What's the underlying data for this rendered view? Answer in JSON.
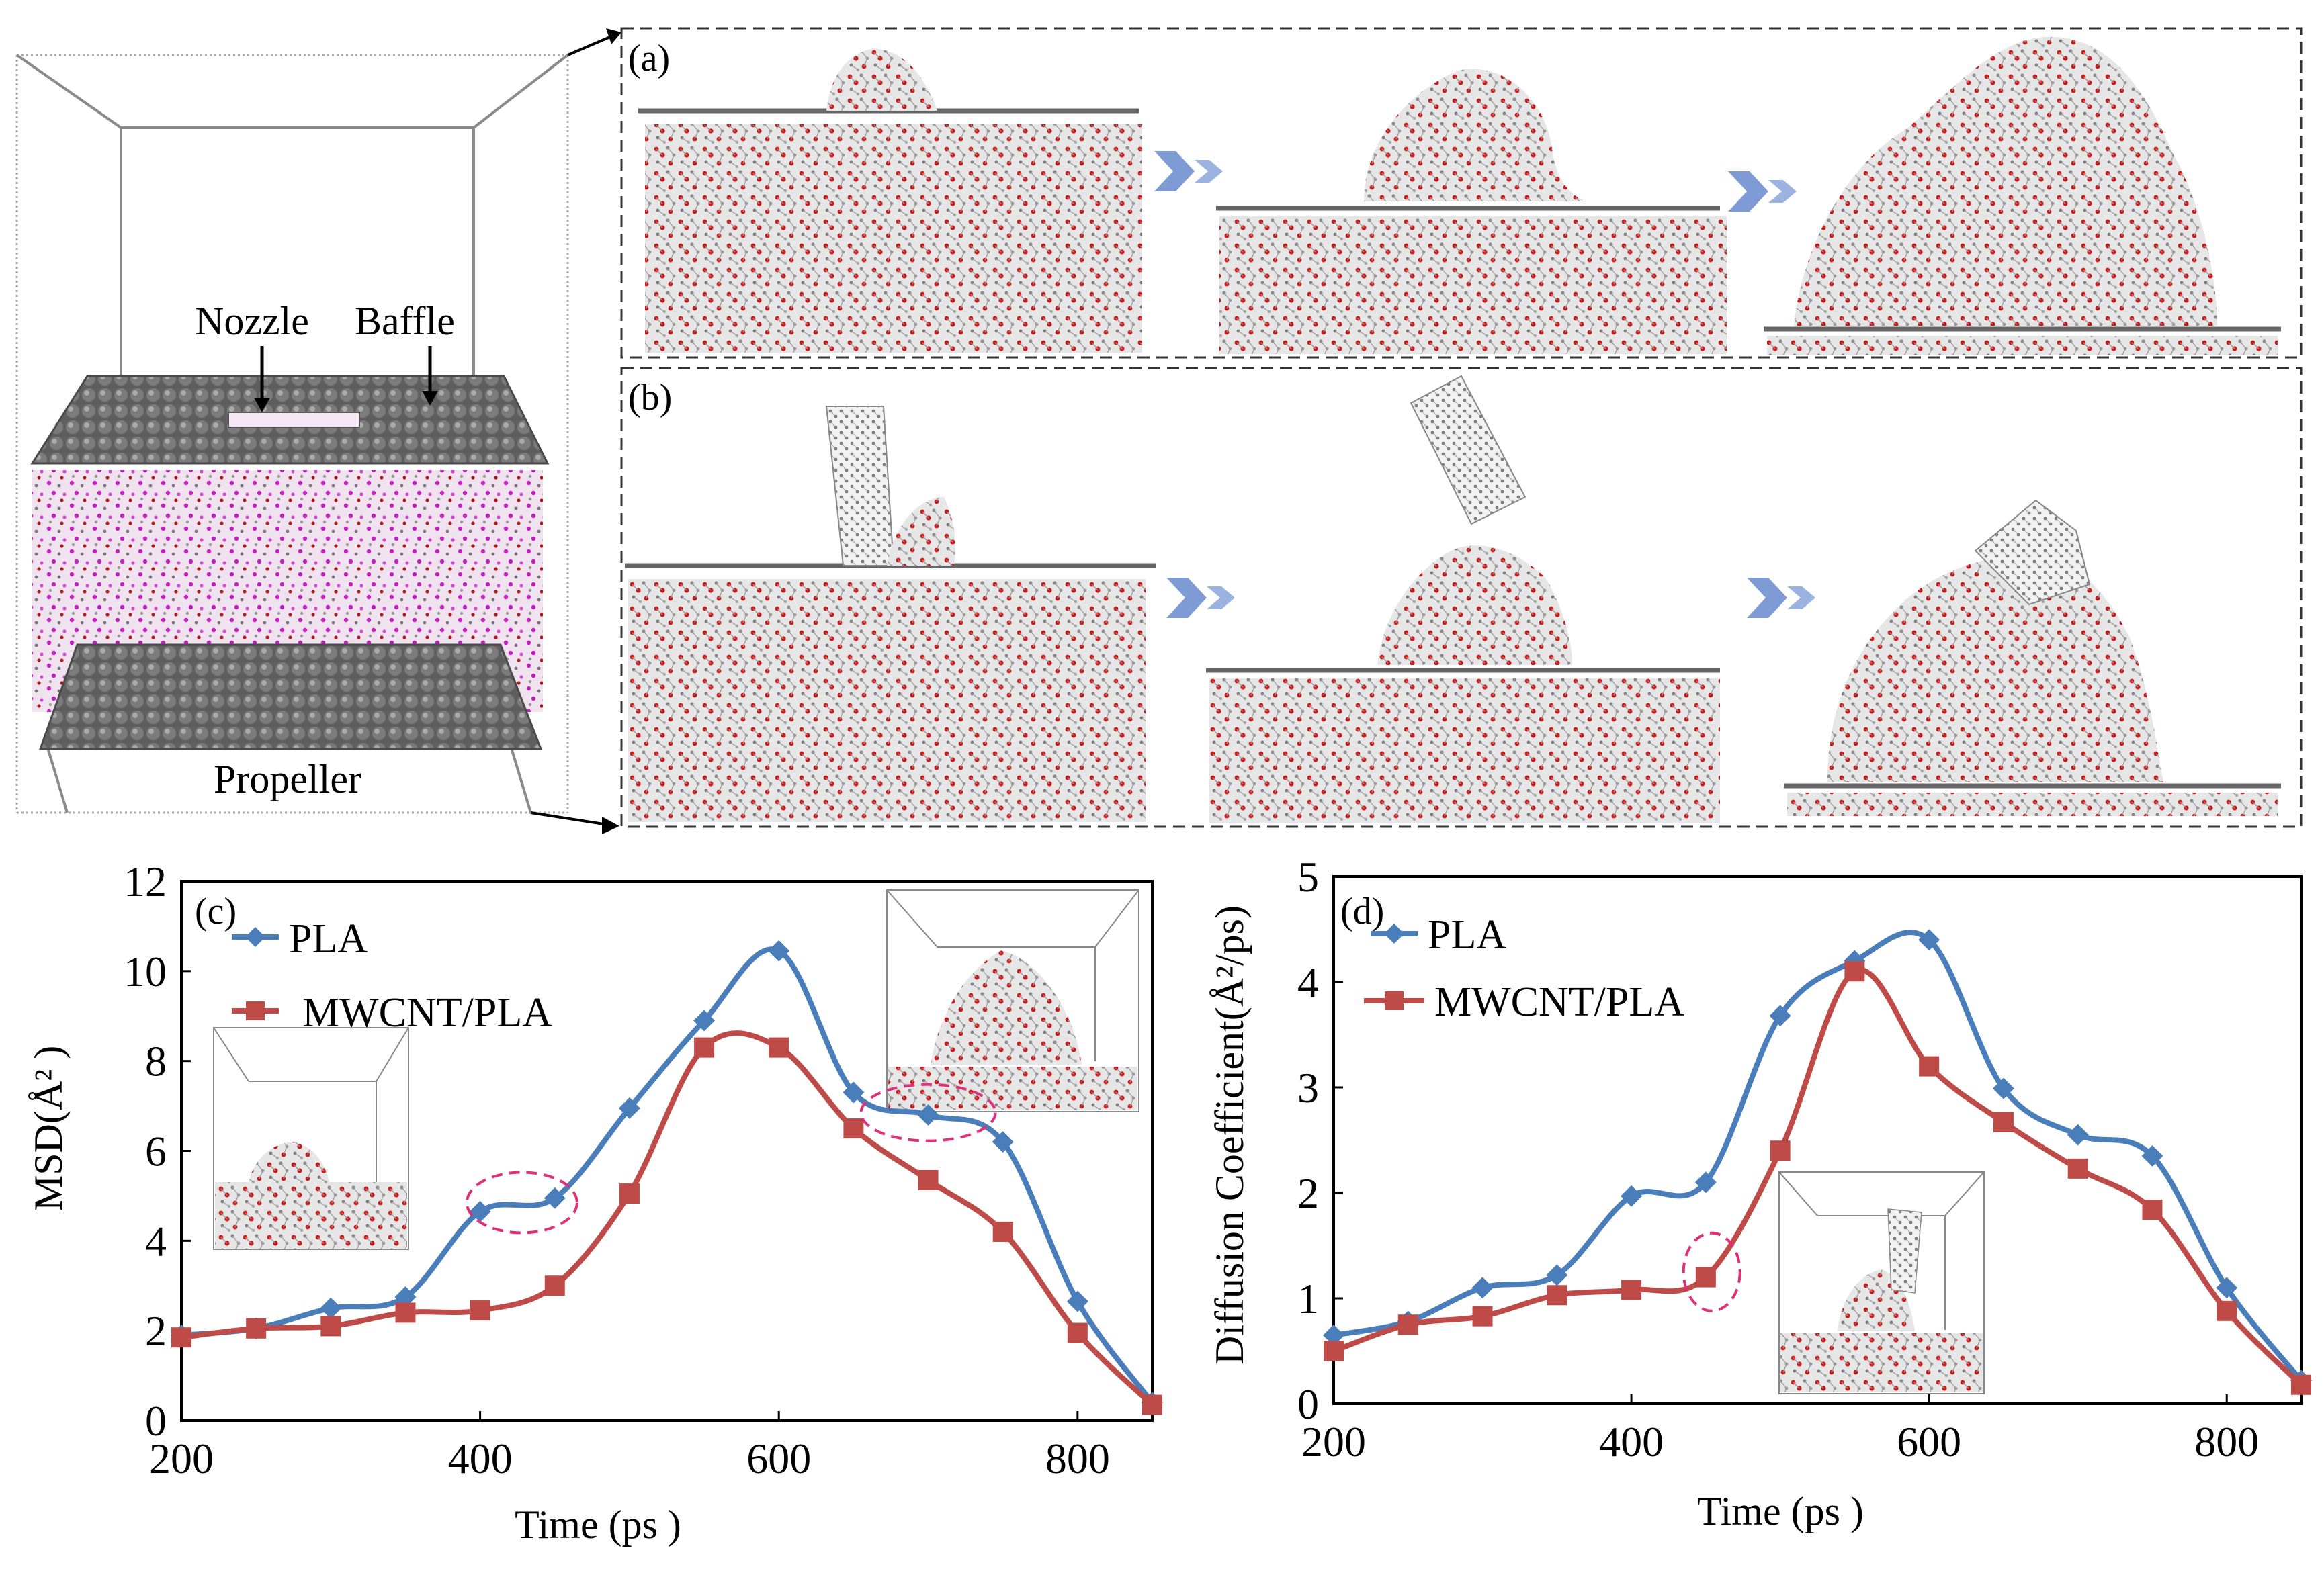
{
  "figure": {
    "top": {
      "labels": {
        "nozzle": "Nozzle",
        "baffle": "Baffle",
        "propeller": "Propeller"
      },
      "panel_a": "(a)",
      "panel_b": "(b)",
      "colors": {
        "oxygen": "#cc1a1a",
        "carbon": "#8a8a8a",
        "hydrogen": "#d8d8d8",
        "pla_magenta": "#c21fc2",
        "arrow": "#7f9bd6",
        "plate": "#6f6f6f"
      }
    }
  },
  "chart_data": [
    {
      "type": "line",
      "panel": "(c)",
      "title": "",
      "xlabel": "Time (ps )",
      "ylabel": "MSD(Å² )",
      "xlim": [
        200,
        850
      ],
      "ylim": [
        0,
        12
      ],
      "xticks": [
        200,
        400,
        600,
        800
      ],
      "yticks": [
        0,
        2,
        4,
        6,
        8,
        10,
        12
      ],
      "x": [
        200,
        250,
        300,
        350,
        400,
        450,
        500,
        550,
        600,
        650,
        700,
        750,
        800,
        850
      ],
      "series": [
        {
          "name": "PLA",
          "color": "#4a7ebb",
          "marker": "diamond",
          "values": [
            1.9,
            2.05,
            2.5,
            2.75,
            4.65,
            4.95,
            6.95,
            8.9,
            10.45,
            7.3,
            6.8,
            6.2,
            2.65,
            0.4
          ]
        },
        {
          "name": "MWCNT/PLA",
          "color": "#be4b48",
          "marker": "square",
          "values": [
            1.85,
            2.05,
            2.1,
            2.4,
            2.45,
            3.0,
            5.05,
            8.3,
            8.3,
            6.5,
            5.35,
            4.2,
            1.95,
            0.35
          ]
        }
      ],
      "annotations": [
        "dashed ellipse around 400–450 ps (PLA plateau)",
        "dashed ellipse around 650–750 ps (PLA plateau)"
      ],
      "legend": "top-left"
    },
    {
      "type": "line",
      "panel": "(d)",
      "title": "",
      "xlabel": "Time (ps )",
      "ylabel": "Diffusion Coefficient(Å²/ps)",
      "xlim": [
        200,
        850
      ],
      "ylim": [
        0,
        5
      ],
      "xticks": [
        200,
        400,
        600,
        800
      ],
      "yticks": [
        0,
        1,
        2,
        3,
        4,
        5
      ],
      "x": [
        200,
        250,
        300,
        350,
        400,
        450,
        500,
        550,
        600,
        650,
        700,
        750,
        800,
        850
      ],
      "series": [
        {
          "name": "PLA",
          "color": "#4a7ebb",
          "marker": "diamond",
          "values": [
            0.65,
            0.78,
            1.1,
            1.22,
            1.97,
            2.1,
            3.68,
            4.2,
            4.4,
            2.99,
            2.55,
            2.35,
            1.1,
            0.22
          ]
        },
        {
          "name": "MWCNT/PLA",
          "color": "#be4b48",
          "marker": "square",
          "values": [
            0.5,
            0.75,
            0.83,
            1.03,
            1.08,
            1.2,
            2.4,
            4.1,
            3.2,
            2.67,
            2.23,
            1.84,
            0.88,
            0.18
          ]
        }
      ],
      "annotations": [
        "dashed ellipse around 450 ps (MWCNT/PLA onset)"
      ],
      "legend": "top-left"
    }
  ]
}
